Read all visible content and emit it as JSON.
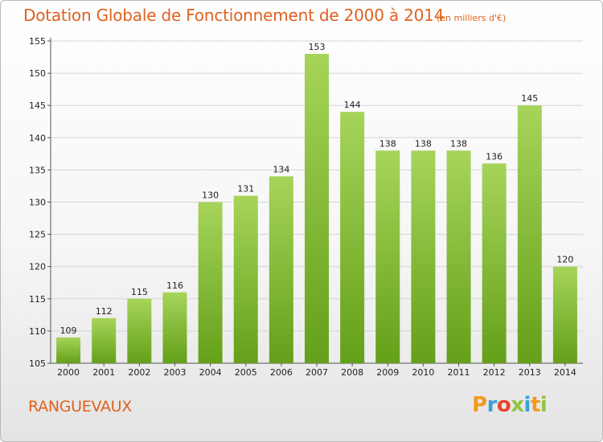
{
  "header": {
    "title": "Dotation Globale de Fonctionnement de 2000 à 2014",
    "subtitle": "(en milliers d'€)"
  },
  "footer": {
    "town": "RANGUEVAUX",
    "logo_letters": [
      "P",
      "r",
      "o",
      "x",
      "i",
      "t",
      "i"
    ],
    "logo_colors": [
      "#f39a1d",
      "#3aa0d8",
      "#e8452a",
      "#8cc63f",
      "#3aa0d8",
      "#f39a1d",
      "#8cc63f"
    ]
  },
  "chart_data": {
    "type": "bar",
    "title": "Dotation Globale de Fonctionnement de 2000 à 2014",
    "subtitle": "(en milliers d'€)",
    "categories": [
      "2000",
      "2001",
      "2002",
      "2003",
      "2004",
      "2005",
      "2006",
      "2007",
      "2008",
      "2009",
      "2010",
      "2011",
      "2012",
      "2013",
      "2014"
    ],
    "values": [
      109,
      112,
      115,
      116,
      130,
      131,
      134,
      153,
      144,
      138,
      138,
      138,
      136,
      145,
      120
    ],
    "ylim": [
      105,
      155
    ],
    "yticks": [
      105,
      110,
      115,
      120,
      125,
      130,
      135,
      140,
      145,
      150,
      155
    ],
    "grid": true,
    "bar_color_top": "#a6d45a",
    "bar_color_bottom": "#64a019"
  }
}
